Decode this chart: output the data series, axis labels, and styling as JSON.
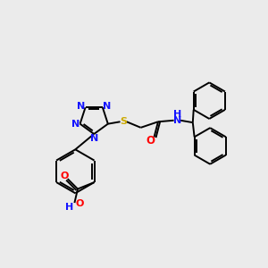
{
  "background_color": "#ebebeb",
  "atom_colors": {
    "N": "#1414ff",
    "O": "#ff0000",
    "S": "#ccaa00",
    "C": "#000000"
  },
  "figsize": [
    3.0,
    3.0
  ],
  "dpi": 100
}
